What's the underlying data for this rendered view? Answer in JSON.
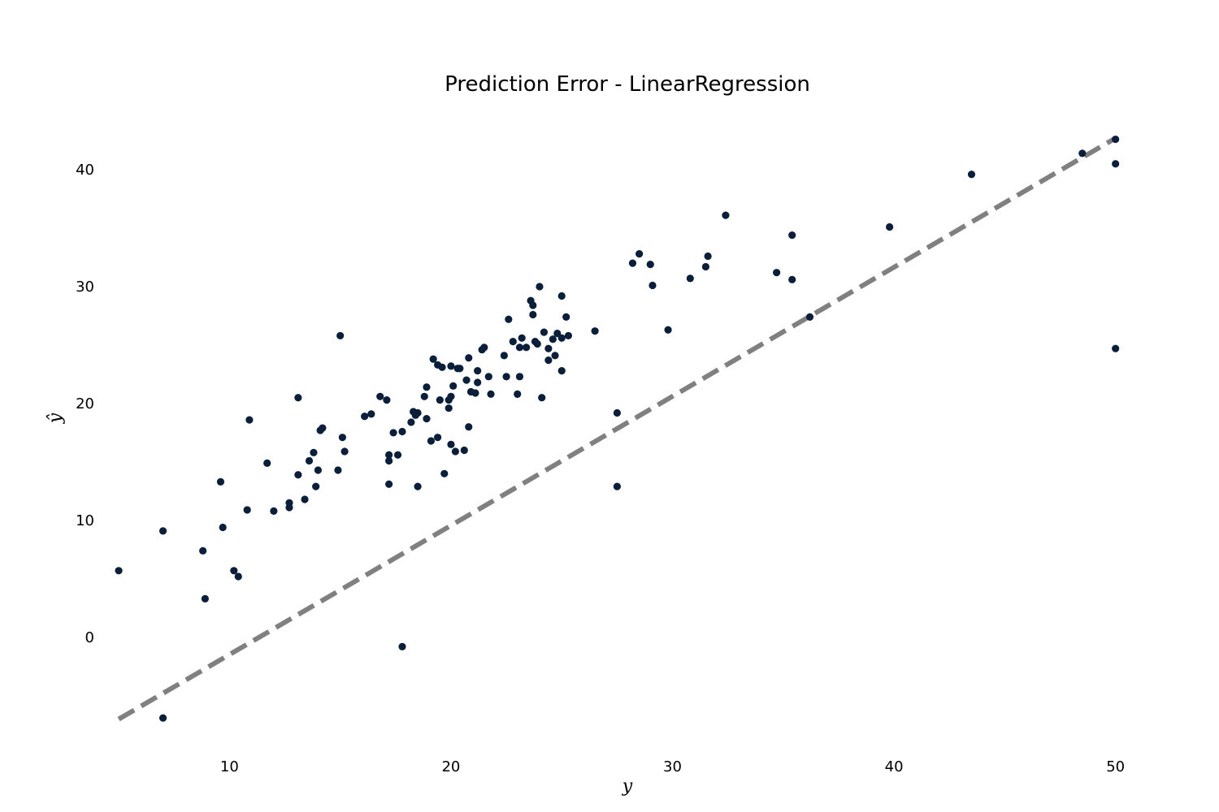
{
  "chart_data": {
    "type": "scatter",
    "title": "Prediction Error - LinearRegression",
    "xlabel": "y",
    "ylabel": "ŷ",
    "xlim": [
      3.75,
      52.25
    ],
    "ylim": [
      -8.9,
      45.0
    ],
    "xticks": [
      10,
      20,
      30,
      40,
      50
    ],
    "yticks": [
      0,
      10,
      20,
      30,
      40
    ],
    "grid": false,
    "identity_line": {
      "from": [
        5,
        -7
      ],
      "to": [
        50,
        42.7
      ],
      "color": "#808080",
      "style": "dashed"
    },
    "point_color": "#0b1f3a",
    "points": [
      [
        5.0,
        5.7
      ],
      [
        7.0,
        9.1
      ],
      [
        7.0,
        -6.9
      ],
      [
        8.8,
        7.4
      ],
      [
        8.9,
        3.3
      ],
      [
        9.6,
        13.3
      ],
      [
        9.7,
        9.4
      ],
      [
        10.2,
        5.7
      ],
      [
        10.4,
        5.2
      ],
      [
        10.8,
        10.9
      ],
      [
        10.9,
        18.6
      ],
      [
        11.7,
        14.9
      ],
      [
        12.0,
        10.8
      ],
      [
        12.7,
        11.1
      ],
      [
        12.7,
        11.5
      ],
      [
        13.1,
        13.9
      ],
      [
        13.1,
        20.5
      ],
      [
        13.4,
        11.8
      ],
      [
        13.6,
        15.1
      ],
      [
        13.8,
        15.8
      ],
      [
        13.9,
        12.9
      ],
      [
        14.0,
        14.3
      ],
      [
        14.1,
        17.7
      ],
      [
        14.2,
        17.9
      ],
      [
        14.9,
        14.3
      ],
      [
        15.0,
        25.8
      ],
      [
        15.1,
        17.1
      ],
      [
        15.2,
        15.9
      ],
      [
        16.1,
        18.9
      ],
      [
        16.4,
        19.1
      ],
      [
        16.8,
        20.6
      ],
      [
        17.1,
        20.3
      ],
      [
        17.2,
        15.6
      ],
      [
        17.2,
        15.1
      ],
      [
        17.2,
        13.1
      ],
      [
        17.4,
        17.5
      ],
      [
        17.6,
        15.6
      ],
      [
        17.8,
        17.6
      ],
      [
        17.8,
        -0.8
      ],
      [
        18.2,
        18.4
      ],
      [
        18.3,
        19.3
      ],
      [
        18.4,
        19.0
      ],
      [
        18.5,
        12.9
      ],
      [
        18.5,
        19.2
      ],
      [
        18.8,
        20.6
      ],
      [
        18.9,
        21.4
      ],
      [
        18.9,
        18.7
      ],
      [
        19.1,
        16.8
      ],
      [
        19.2,
        23.8
      ],
      [
        19.4,
        17.1
      ],
      [
        19.4,
        23.3
      ],
      [
        19.5,
        20.3
      ],
      [
        19.6,
        23.1
      ],
      [
        19.7,
        14.0
      ],
      [
        19.9,
        20.3
      ],
      [
        19.9,
        19.6
      ],
      [
        20.0,
        20.6
      ],
      [
        20.0,
        23.2
      ],
      [
        20.0,
        16.5
      ],
      [
        20.1,
        21.5
      ],
      [
        20.2,
        15.9
      ],
      [
        20.3,
        23.0
      ],
      [
        20.4,
        23.0
      ],
      [
        20.6,
        16.0
      ],
      [
        20.7,
        22.0
      ],
      [
        20.8,
        23.9
      ],
      [
        20.8,
        18.0
      ],
      [
        20.9,
        21.0
      ],
      [
        21.1,
        20.9
      ],
      [
        21.2,
        21.8
      ],
      [
        21.2,
        22.8
      ],
      [
        21.4,
        24.6
      ],
      [
        21.5,
        24.8
      ],
      [
        21.7,
        22.3
      ],
      [
        21.8,
        20.8
      ],
      [
        22.4,
        24.1
      ],
      [
        22.5,
        22.3
      ],
      [
        22.6,
        27.2
      ],
      [
        22.8,
        25.3
      ],
      [
        23.0,
        20.8
      ],
      [
        23.1,
        22.3
      ],
      [
        23.1,
        24.8
      ],
      [
        23.2,
        25.6
      ],
      [
        23.4,
        24.8
      ],
      [
        23.6,
        28.8
      ],
      [
        23.7,
        28.4
      ],
      [
        23.7,
        27.6
      ],
      [
        23.8,
        25.3
      ],
      [
        23.9,
        25.1
      ],
      [
        24.0,
        30.0
      ],
      [
        24.1,
        20.5
      ],
      [
        24.2,
        26.1
      ],
      [
        24.4,
        24.7
      ],
      [
        24.4,
        23.7
      ],
      [
        24.6,
        25.5
      ],
      [
        24.7,
        24.1
      ],
      [
        24.8,
        26.0
      ],
      [
        25.0,
        29.2
      ],
      [
        25.0,
        25.6
      ],
      [
        25.0,
        22.8
      ],
      [
        25.2,
        27.4
      ],
      [
        25.3,
        25.8
      ],
      [
        26.5,
        26.2
      ],
      [
        27.5,
        12.9
      ],
      [
        27.5,
        19.2
      ],
      [
        28.2,
        32.0
      ],
      [
        28.5,
        32.8
      ],
      [
        29.0,
        31.9
      ],
      [
        29.1,
        30.1
      ],
      [
        29.8,
        26.3
      ],
      [
        30.8,
        30.7
      ],
      [
        31.5,
        31.7
      ],
      [
        31.6,
        32.6
      ],
      [
        32.4,
        36.1
      ],
      [
        34.7,
        31.2
      ],
      [
        35.4,
        34.4
      ],
      [
        35.4,
        30.6
      ],
      [
        36.2,
        27.4
      ],
      [
        39.8,
        35.1
      ],
      [
        43.5,
        39.6
      ],
      [
        48.5,
        41.4
      ],
      [
        50.0,
        42.6
      ],
      [
        50.0,
        40.5
      ],
      [
        50.0,
        24.7
      ]
    ]
  }
}
